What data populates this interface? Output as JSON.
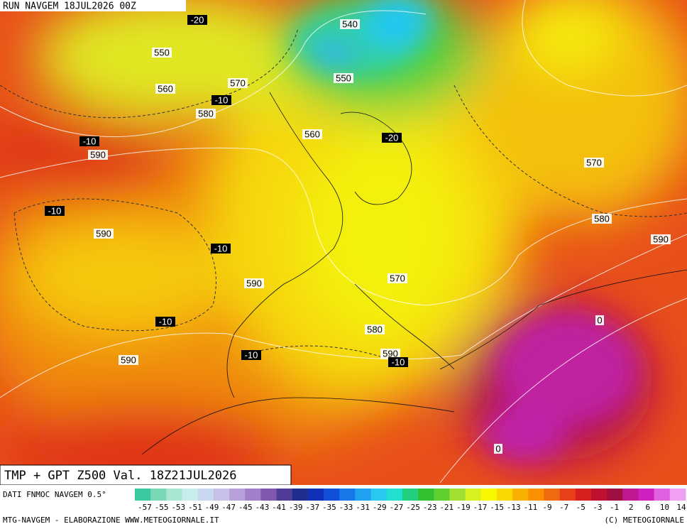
{
  "header": {
    "run": "RUN NAVGEM 18JUL2026 00Z"
  },
  "map": {
    "contour_labels": [
      {
        "value": -20,
        "kind": "temperature"
      },
      {
        "value": 540,
        "kind": "geopotential"
      },
      {
        "value": 550,
        "kind": "geopotential"
      },
      {
        "value": 560,
        "kind": "geopotential"
      },
      {
        "value": 570,
        "kind": "geopotential"
      },
      {
        "value": -10,
        "kind": "temperature"
      },
      {
        "value": 580,
        "kind": "geopotential"
      },
      {
        "value": 550,
        "kind": "geopotential"
      },
      {
        "value": 560,
        "kind": "geopotential"
      },
      {
        "value": -20,
        "kind": "temperature"
      },
      {
        "value": -10,
        "kind": "temperature"
      },
      {
        "value": 590,
        "kind": "geopotential"
      },
      {
        "value": 570,
        "kind": "geopotential"
      },
      {
        "value": -10,
        "kind": "temperature"
      },
      {
        "value": 580,
        "kind": "geopotential"
      },
      {
        "value": 590,
        "kind": "geopotential"
      },
      {
        "value": 590,
        "kind": "geopotential"
      },
      {
        "value": -10,
        "kind": "temperature"
      },
      {
        "value": 590,
        "kind": "geopotential"
      },
      {
        "value": 570,
        "kind": "geopotential"
      },
      {
        "value": -10,
        "kind": "temperature"
      },
      {
        "value": 0,
        "kind": "geopotential"
      },
      {
        "value": 580,
        "kind": "geopotential"
      },
      {
        "value": 590,
        "kind": "geopotential"
      },
      {
        "value": -10,
        "kind": "temperature"
      },
      {
        "value": 590,
        "kind": "geopotential"
      },
      {
        "value": -10,
        "kind": "temperature"
      },
      {
        "value": 0,
        "kind": "geopotential"
      }
    ]
  },
  "caption": {
    "title": "TMP + GPT Z500 Val. 18Z21JUL2026",
    "source": "DATI FNMOC NAVGEM 0.5°"
  },
  "legend": {
    "colors": [
      "#3cc8a0",
      "#7ad8b8",
      "#a8e8d0",
      "#c8ecec",
      "#c8d8f0",
      "#c8c0e8",
      "#b8a0d8",
      "#a080c8",
      "#8058b0",
      "#503c98",
      "#202c90",
      "#1030b8",
      "#1050d8",
      "#1878e8",
      "#20a0f0",
      "#28c8f0",
      "#20e0d0",
      "#20d080",
      "#30c030",
      "#60d030",
      "#a0e030",
      "#d8f020",
      "#f8f800",
      "#f8d800",
      "#f8b000",
      "#f89000",
      "#f06810",
      "#e84018",
      "#d82020",
      "#c01030",
      "#a01040",
      "#c01890",
      "#d020c0",
      "#e060e0",
      "#f0a0f0"
    ],
    "labels": [
      -57,
      -55,
      -53,
      -51,
      -49,
      -47,
      -45,
      -43,
      -41,
      -39,
      -37,
      -35,
      -33,
      -31,
      -29,
      -27,
      -25,
      -23,
      -21,
      -19,
      -17,
      -15,
      -13,
      -11,
      -9,
      -7,
      -5,
      -3,
      -1,
      2,
      6,
      10,
      14
    ]
  },
  "footer": {
    "left": "MTG-NAVGEM - ELABORAZIONE WWW.METEOGIORNALE.IT",
    "right": "(C) METEOGIORNALE"
  }
}
